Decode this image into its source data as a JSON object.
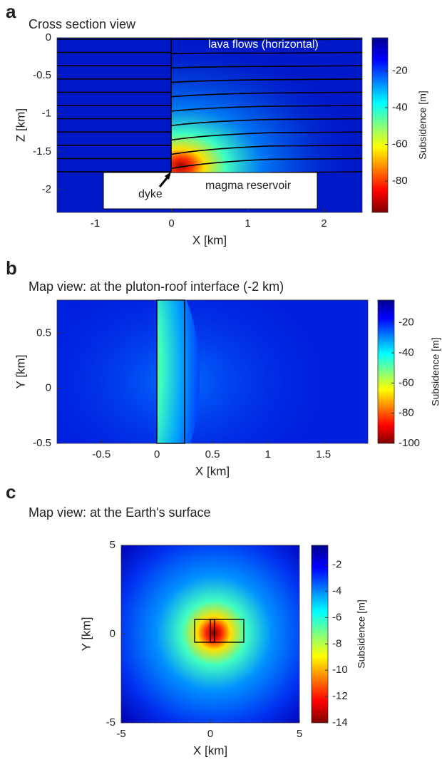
{
  "chart_data": [
    {
      "type": "heatmap",
      "panel_label": "a",
      "title": "Cross section view",
      "xlabel": "X [km]",
      "ylabel": "Z [km]",
      "xlim": [
        -1.5,
        2.5
      ],
      "ylim": [
        -2.3,
        0
      ],
      "xticks": [
        -1,
        0,
        1,
        2
      ],
      "yticks": [
        -2,
        -1.5,
        -1,
        -0.5,
        0
      ],
      "colorbar": {
        "label": "Subsidence [m]",
        "clim": [
          -97,
          -2
        ],
        "ticks": [
          -80,
          -60,
          -40,
          -20
        ]
      },
      "annotations": [
        "lava flows (horizontal)",
        "dyke",
        "magma reservoir"
      ]
    },
    {
      "type": "heatmap",
      "panel_label": "b",
      "title": "Map view: at the pluton-roof interface (-2 km)",
      "xlabel": "X [km]",
      "ylabel": "Y [km]",
      "xlim": [
        -0.9,
        1.9
      ],
      "ylim": [
        -0.5,
        0.8
      ],
      "xticks": [
        -0.5,
        0,
        0.5,
        1,
        1.5
      ],
      "yticks": [
        -0.5,
        0,
        0.5
      ],
      "colorbar": {
        "label": "Subsidence [m]",
        "clim": [
          -100,
          -5
        ],
        "ticks": [
          -100,
          -80,
          -60,
          -40,
          -20
        ]
      }
    },
    {
      "type": "heatmap",
      "panel_label": "c",
      "title": "Map view: at the Earth's surface",
      "xlabel": "X [km]",
      "ylabel": "Y [km]",
      "xlim": [
        -5,
        5
      ],
      "ylim": [
        -5,
        5
      ],
      "xticks": [
        -5,
        0,
        5
      ],
      "yticks": [
        -5,
        0,
        5
      ],
      "colorbar": {
        "label": "Subsidence [m]",
        "clim": [
          -14,
          -0.5
        ],
        "ticks": [
          -14,
          -12,
          -10,
          -8,
          -6,
          -4,
          -2
        ]
      }
    }
  ]
}
